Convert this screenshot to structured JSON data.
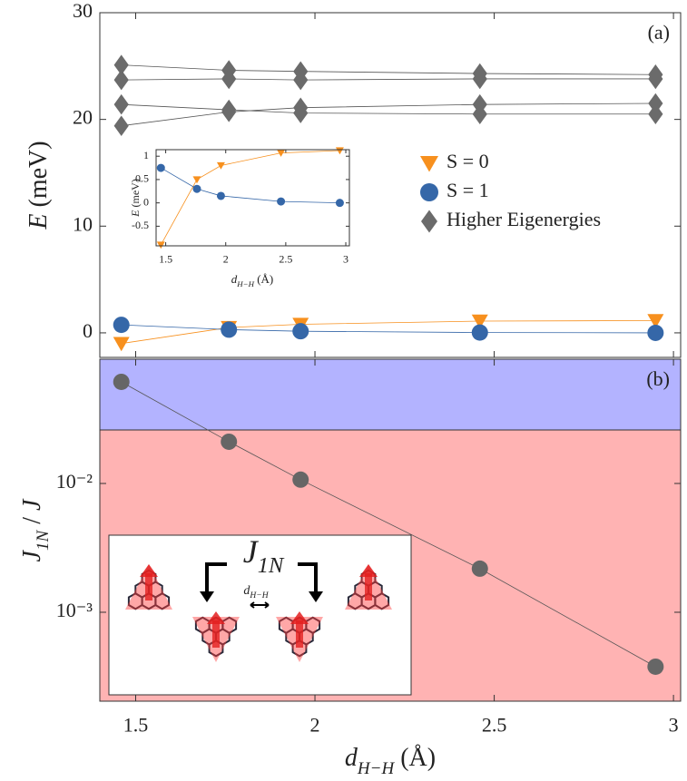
{
  "chart_data": [
    {
      "type": "line",
      "panel_label": "(a)",
      "ylabel": [
        {
          "text": "E",
          "italic": true
        },
        {
          "text": " (meV)"
        }
      ],
      "x": [
        1.46,
        1.76,
        1.96,
        2.46,
        2.95
      ],
      "xlim": [
        1.4,
        3.02
      ],
      "xticks": [
        1.5,
        2,
        2.5,
        3
      ],
      "xtick_labels": false,
      "ylim": [
        -2.3,
        30
      ],
      "yticks": [
        0,
        10,
        20,
        30
      ],
      "legend_loc": "center right",
      "series": [
        {
          "name": "S = 0",
          "marker": "triangle-down",
          "color": "#f7901e",
          "values": [
            -1.0,
            0.5,
            0.8,
            1.1,
            1.15
          ]
        },
        {
          "name": "S = 1",
          "marker": "circle",
          "color": "#3567a8",
          "values": [
            0.75,
            0.3,
            0.15,
            0.03,
            0.0
          ]
        },
        {
          "name": "Higher Eigenergies",
          "marker": "diamond",
          "color": "#6b6b6b",
          "values": [
            25.1,
            24.6,
            24.5,
            24.3,
            24.2
          ]
        },
        {
          "marker": "diamond",
          "color": "#6b6b6b",
          "values": [
            23.7,
            23.8,
            23.7,
            23.8,
            23.8
          ]
        },
        {
          "marker": "diamond",
          "color": "#6b6b6b",
          "values": [
            21.4,
            20.9,
            20.6,
            20.5,
            20.5
          ]
        },
        {
          "marker": "diamond",
          "color": "#6b6b6b",
          "values": [
            19.4,
            20.7,
            21.1,
            21.4,
            21.5
          ]
        }
      ]
    },
    {
      "type": "line",
      "ylabel": [
        {
          "text": "E",
          "italic": true
        },
        {
          "text": " (meV)"
        }
      ],
      "xlabel": [
        {
          "text": "d",
          "italic": true
        },
        {
          "text": "H−H",
          "sub": true,
          "italic": true
        },
        {
          "text": " (Å)"
        }
      ],
      "x": [
        1.46,
        1.76,
        1.96,
        2.46,
        2.95
      ],
      "xlim": [
        1.42,
        3.03
      ],
      "xticks": [
        1.5,
        2,
        2.5,
        3
      ],
      "ylim": [
        -0.92,
        1.14
      ],
      "yticks": [
        -0.5,
        0,
        0.5,
        1
      ],
      "series": [
        {
          "marker": "triangle-down",
          "color": "#f7901e",
          "values": [
            -0.9,
            0.5,
            0.8,
            1.07,
            1.12
          ]
        },
        {
          "marker": "circle",
          "color": "#3567a8",
          "values": [
            0.75,
            0.3,
            0.15,
            0.03,
            0.0
          ]
        }
      ]
    },
    {
      "type": "line",
      "panel_label": "(b)",
      "log_scale": true,
      "ylabel": [
        {
          "text": "J",
          "italic": true
        },
        {
          "text": "1N",
          "sub": true,
          "italic": true
        },
        {
          "text": " / "
        },
        {
          "text": "J",
          "italic": true
        }
      ],
      "xlabel": [
        {
          "text": "d",
          "italic": true
        },
        {
          "text": "H−H",
          "sub": true,
          "italic": true
        },
        {
          "text": " (Å)"
        }
      ],
      "x": [
        1.46,
        1.76,
        1.96,
        2.46,
        2.95
      ],
      "xlim": [
        1.4,
        3.02
      ],
      "xticks": [
        1.5,
        2,
        2.5,
        3
      ],
      "ylim": [
        0.000204,
        0.0922
      ],
      "yticks": [
        {
          "value": 0.01,
          "label": "10⁻²"
        },
        {
          "value": 0.001,
          "label": "10⁻³"
        }
      ],
      "threshold": 0.026,
      "color_above": "#b3b3ff",
      "color_below": "#ffb3b3",
      "series": [
        {
          "marker": "circle",
          "color": "#666666",
          "values": [
            0.0615,
            0.0211,
            0.0107,
            0.00218,
            0.000378
          ]
        }
      ],
      "diagram_labels": {
        "coupling": [
          {
            "text": "J",
            "italic": true
          },
          {
            "text": "1N",
            "sub": true,
            "italic": true
          }
        ],
        "distance": [
          {
            "text": "d",
            "italic": true
          },
          {
            "text": "H−H",
            "sub": true,
            "italic": true
          }
        ]
      }
    }
  ]
}
